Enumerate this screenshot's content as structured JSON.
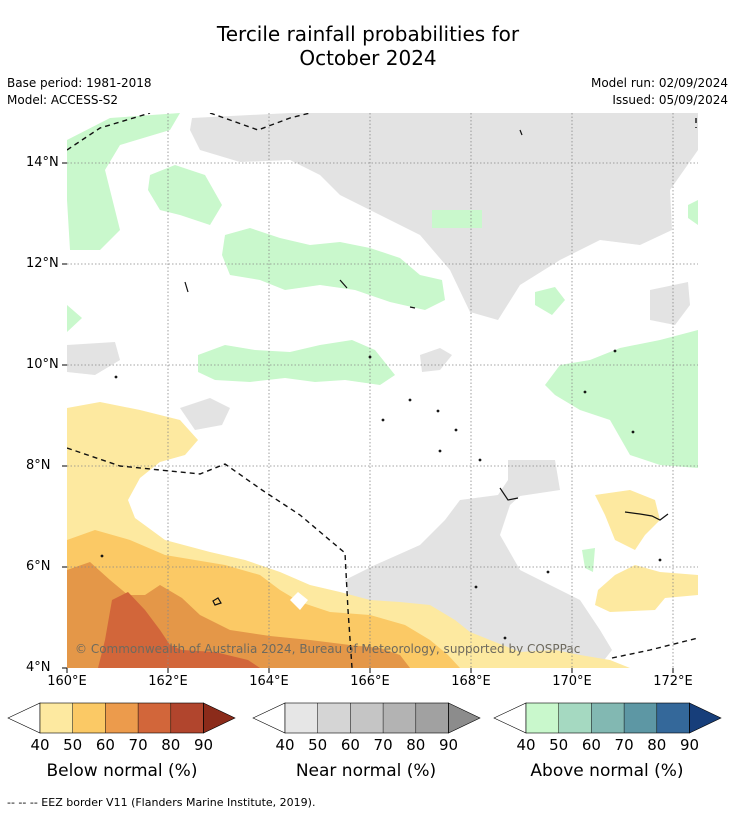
{
  "title_line1": "Tercile rainfall probabilities for",
  "title_line2": "October 2024",
  "base_period": "Base period: 1981-2018",
  "model": "Model: ACCESS-S2",
  "model_run": "Model run: 02/09/2024",
  "issued": "Issued: 05/09/2024",
  "copyright": "© Commonwealth of Australia 2024, Bureau of Meteorology, supported by COSPPac",
  "footnote": "--  --  -- EEZ border V11 (Flanders Marine Institute, 2019).",
  "axes": {
    "lat_labels": [
      "14°N",
      "12°N",
      "10°N",
      "8°N",
      "6°N",
      "4°N"
    ],
    "lon_labels": [
      "160°E",
      "162°E",
      "164°E",
      "166°E",
      "168°E",
      "170°E",
      "172°E"
    ]
  },
  "legends": [
    {
      "title": "Below normal (%)",
      "ticks": [
        "40",
        "50",
        "60",
        "70",
        "80",
        "90"
      ],
      "colors": [
        "#fde9a0",
        "#fbc965",
        "#ec9b4c",
        "#d2663a",
        "#b1452d",
        "#8b2b1a"
      ]
    },
    {
      "title": "Near normal (%)",
      "ticks": [
        "40",
        "50",
        "60",
        "70",
        "80",
        "90"
      ],
      "colors": [
        "#e6e6e6",
        "#d5d5d5",
        "#c5c5c5",
        "#b3b3b3",
        "#a1a1a1",
        "#8c8c8c"
      ]
    },
    {
      "title": "Above normal (%)",
      "ticks": [
        "40",
        "50",
        "60",
        "70",
        "80",
        "90"
      ],
      "colors": [
        "#c9f8cc",
        "#a5d9c1",
        "#82b8b2",
        "#5d97a4",
        "#34689a",
        "#173e7a"
      ]
    }
  ],
  "colors": {
    "below_40": "#fde9a0",
    "below_50": "#fbc965",
    "below_60": "#e49748",
    "below_70": "#d2663a",
    "near_40": "#e3e3e3",
    "above_40": "#c9f8cc",
    "grid": "#888888"
  }
}
